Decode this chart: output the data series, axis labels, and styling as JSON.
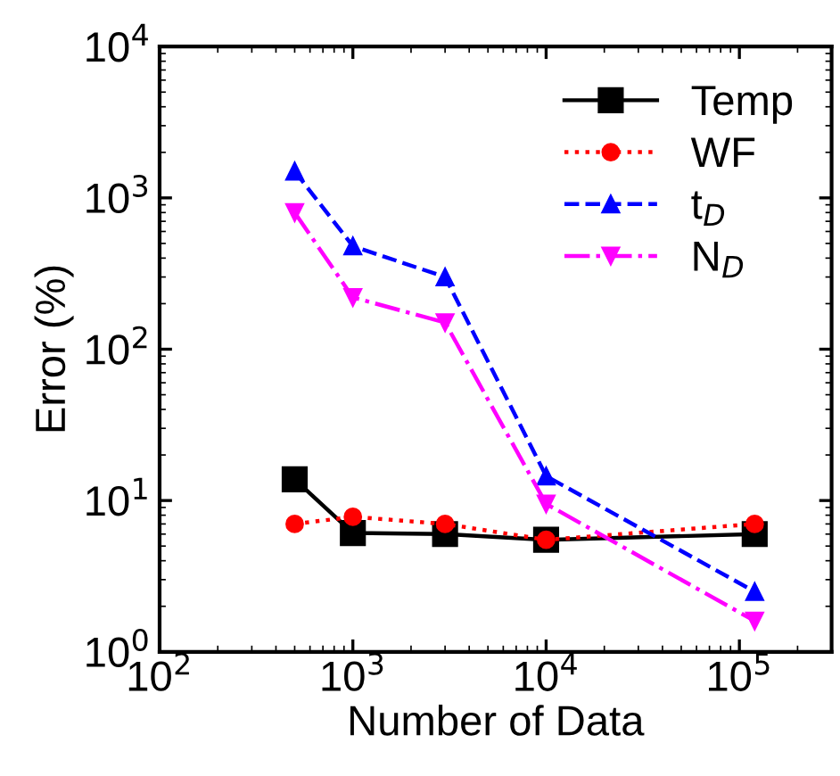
{
  "chart_data": {
    "type": "line",
    "xlabel": "Number of Data",
    "ylabel": "Error (%)",
    "log": "xy",
    "x": [
      500,
      1000,
      3000,
      10000,
      120000
    ],
    "xlim": [
      100,
      300000
    ],
    "ylim": [
      1,
      10000
    ],
    "xticks": [
      {
        "value": 100,
        "label": "10$^{2}$"
      },
      {
        "value": 1000,
        "label": "10$^{3}$"
      },
      {
        "value": 10000,
        "label": "10$^{4}$"
      },
      {
        "value": 100000,
        "label": "10$^{5}$"
      }
    ],
    "yticks": [
      {
        "value": 1,
        "label": "10$^{0}$"
      },
      {
        "value": 10,
        "label": "10$^{1}$"
      },
      {
        "value": 100,
        "label": "10$^{2}$"
      },
      {
        "value": 1000,
        "label": "10$^{3}$"
      },
      {
        "value": 10000,
        "label": "10$^{4}$"
      }
    ],
    "grid": false,
    "legend": "top right",
    "series": [
      {
        "name": "Temp",
        "color": "#000000",
        "marker": "square",
        "line_style": "solid",
        "values": [
          13.8,
          6.1,
          6.0,
          5.5,
          6.0
        ]
      },
      {
        "name": "WF",
        "color": "#ff0000",
        "marker": "circle",
        "line_style": "dotted",
        "values": [
          7.0,
          7.8,
          7.0,
          5.5,
          7.0
        ]
      },
      {
        "name": "t$_{D}$",
        "color": "#0000ff",
        "marker": "triangle",
        "line_style": "dashed",
        "values": [
          1500,
          480,
          300,
          14.5,
          2.5
        ]
      },
      {
        "name": "N$_{D}$",
        "color": "#ff00ff",
        "marker": "triangle_down",
        "line_style": "dashdot",
        "values": [
          800,
          220,
          150,
          9.5,
          1.6
        ]
      }
    ]
  }
}
